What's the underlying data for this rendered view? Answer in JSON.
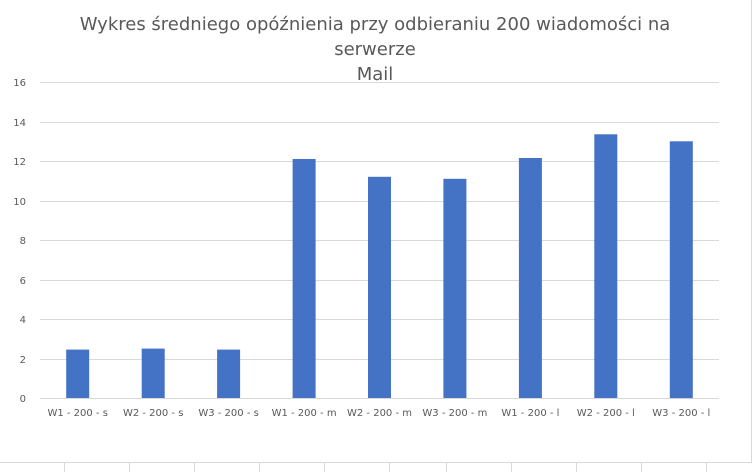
{
  "chart_data": {
    "type": "bar",
    "title_lines": [
      "Wykres średniego opóźnienia przy odbieraniu 200 wiadomości na serwerze",
      "Mail"
    ],
    "categories": [
      "W1 - 200 - s",
      "W2 - 200 - s",
      "W3 - 200 - s",
      "W1 - 200 - m",
      "W2 - 200 - m",
      "W3 - 200 - m",
      "W1 - 200 - l",
      "W2 - 200 - l",
      "W3 - 200 - l"
    ],
    "values": [
      2.45,
      2.5,
      2.45,
      12.1,
      11.2,
      11.1,
      12.15,
      13.35,
      13.0
    ],
    "yticks": [
      "0",
      "2",
      "4",
      "6",
      "8",
      "10",
      "12",
      "14",
      "16"
    ],
    "ylim": [
      0,
      16
    ],
    "grid": true,
    "bar_color": "#4472c4",
    "grid_color": "#d9d9d9"
  }
}
